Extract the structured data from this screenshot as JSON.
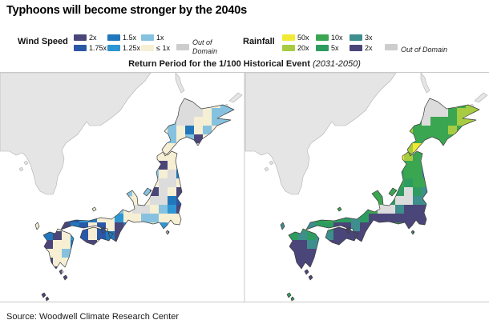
{
  "title": "Typhoons will become stronger by the 2040s",
  "subtitle": {
    "bold": "Return Period for the 1/100 Historical Event",
    "italic": "(2031-2050)"
  },
  "source": "Source: Woodwell Climate Research Center",
  "legend": {
    "wind": {
      "title": "Wind Speed",
      "items": [
        {
          "key": "2x",
          "label": "2x"
        },
        {
          "key": "1.75x",
          "label": "1.75x"
        },
        {
          "key": "1.5x",
          "label": "1.5x"
        },
        {
          "key": "1.25x",
          "label": "1.25x"
        },
        {
          "key": "1x",
          "label": "1x"
        },
        {
          "key": "le1x",
          "label": "≤ 1x"
        }
      ],
      "out_of_domain": "Out of Domain"
    },
    "rain": {
      "title": "Rainfall",
      "items": [
        {
          "key": "50x",
          "label": "50x"
        },
        {
          "key": "20x",
          "label": "20x"
        },
        {
          "key": "10x",
          "label": "10x"
        },
        {
          "key": "5x",
          "label": "5x"
        },
        {
          "key": "3x",
          "label": "3x"
        },
        {
          "key": "2x",
          "label": "2x"
        }
      ],
      "out_of_domain": "Out of Domain"
    }
  },
  "palette": {
    "wind": {
      "2x": "#4a4679",
      "1.75x": "#2b57a7",
      "1.5x": "#2277bb",
      "1.25x": "#2e96d3",
      "1x": "#86c2df",
      "le1x": "#f6efd4",
      "ood": "#dcdcdc"
    },
    "rain": {
      "50x": "#f2e935",
      "20x": "#a7cc42",
      "10x": "#3ba651",
      "5x": "#2e9c60",
      "3x": "#3e8e8e",
      "2x": "#4a4679",
      "ood": "#dcdcdc"
    },
    "legend_ood_swatch": "#cdcdcd",
    "mainland": "#e5e5e5",
    "mainland_stroke": "#b0b0b0",
    "coast": "#3d3d3d",
    "sea": "#ffffff",
    "border": "#c9c9c9",
    "wind_base": "#f6efd4",
    "rain_base": "#3ba651"
  },
  "chart_data": {
    "type": "heatmap",
    "title": "Return Period for the 1/100 Historical Event (2031-2050)",
    "maps": [
      {
        "id": "wind",
        "name": "Wind Speed",
        "categories": [
          "2x",
          "1.75x",
          "1.5x",
          "1.25x",
          "1x",
          "≤ 1x",
          "Out of Domain"
        ]
      },
      {
        "id": "rain",
        "name": "Rainfall",
        "categories": [
          "50x",
          "20x",
          "10x",
          "5x",
          "3x",
          "2x",
          "Out of Domain"
        ]
      }
    ],
    "region": "Japan",
    "cell_size": 11,
    "cells_format": [
      "col",
      "row",
      "wind_value",
      "rain_value"
    ],
    "cells": [
      [
        20,
        3,
        "ood",
        "ood"
      ],
      [
        21,
        3,
        "ood",
        "ood"
      ],
      [
        22,
        3,
        "ood",
        "ood"
      ],
      [
        23,
        3,
        "ood",
        "20x"
      ],
      [
        24,
        3,
        "le1x",
        "10x"
      ],
      [
        25,
        3,
        "1x",
        "20x"
      ],
      [
        26,
        3,
        "le1x",
        "20x"
      ],
      [
        19,
        4,
        "le1x",
        "10x"
      ],
      [
        20,
        4,
        "ood",
        "ood"
      ],
      [
        21,
        4,
        "ood",
        "ood"
      ],
      [
        22,
        4,
        "ood",
        "ood"
      ],
      [
        23,
        4,
        "le1x",
        "10x"
      ],
      [
        24,
        4,
        "1x",
        "20x"
      ],
      [
        25,
        4,
        "1x",
        "20x"
      ],
      [
        26,
        4,
        "1x",
        "20x"
      ],
      [
        18,
        5,
        "le1x",
        "10x"
      ],
      [
        19,
        5,
        "1x",
        "10x"
      ],
      [
        20,
        5,
        "ood",
        "ood"
      ],
      [
        21,
        5,
        "ood",
        "10x"
      ],
      [
        22,
        5,
        "le1x",
        "10x"
      ],
      [
        23,
        5,
        "le1x",
        "10x"
      ],
      [
        24,
        5,
        "1x",
        "20x"
      ],
      [
        25,
        5,
        "1x",
        "20x"
      ],
      [
        26,
        5,
        "le1x",
        "20x"
      ],
      [
        18,
        6,
        "le1x",
        "20x"
      ],
      [
        19,
        6,
        "1x",
        "10x"
      ],
      [
        20,
        6,
        "le1x",
        "10x"
      ],
      [
        21,
        6,
        "1.5x",
        "10x"
      ],
      [
        22,
        6,
        "le1x",
        "10x"
      ],
      [
        23,
        6,
        "1x",
        "20x"
      ],
      [
        24,
        6,
        "le1x",
        "10x"
      ],
      [
        25,
        6,
        "le1x",
        "20x"
      ],
      [
        18,
        7,
        "le1x",
        "50x"
      ],
      [
        19,
        7,
        "1x",
        "10x"
      ],
      [
        20,
        7,
        "le1x",
        "10x"
      ],
      [
        21,
        7,
        "1x",
        "10x"
      ],
      [
        22,
        7,
        "2x",
        "10x"
      ],
      [
        23,
        7,
        "le1x",
        "10x"
      ],
      [
        18,
        8,
        "le1x",
        "20x"
      ],
      [
        19,
        8,
        "le1x",
        "50x"
      ],
      [
        17,
        9,
        "le1x",
        "50x"
      ],
      [
        18,
        9,
        "le1x",
        "20x"
      ],
      [
        19,
        9,
        "le1x",
        "10x"
      ],
      [
        20,
        9,
        "le1x",
        "10x"
      ],
      [
        17,
        10,
        "le1x",
        "10x"
      ],
      [
        18,
        10,
        "2x",
        "10x"
      ],
      [
        19,
        10,
        "le1x",
        "10x"
      ],
      [
        20,
        10,
        "1x",
        "5x"
      ],
      [
        17,
        11,
        "1x",
        "5x"
      ],
      [
        18,
        11,
        "le1x",
        "10x"
      ],
      [
        19,
        11,
        "ood",
        "10x"
      ],
      [
        20,
        11,
        "1.5x",
        "3x"
      ],
      [
        17,
        12,
        "le1x",
        "10x"
      ],
      [
        18,
        12,
        "ood",
        "5x"
      ],
      [
        19,
        12,
        "ood",
        "10x"
      ],
      [
        20,
        12,
        "le1x",
        "10x"
      ],
      [
        14,
        13,
        "1x",
        "10x"
      ],
      [
        15,
        13,
        "le1x",
        "10x"
      ],
      [
        16,
        13,
        "1x",
        "10x"
      ],
      [
        17,
        13,
        "2x",
        "5x"
      ],
      [
        18,
        13,
        "ood",
        "ood"
      ],
      [
        19,
        13,
        "le1x",
        "5x"
      ],
      [
        20,
        13,
        "2x",
        "3x"
      ],
      [
        15,
        14,
        "le1x",
        "10x"
      ],
      [
        16,
        14,
        "le1x",
        "5x"
      ],
      [
        17,
        14,
        "ood",
        "ood"
      ],
      [
        18,
        14,
        "ood",
        "ood"
      ],
      [
        19,
        14,
        "1.5x",
        "3x"
      ],
      [
        20,
        14,
        "1.75x",
        "3x"
      ],
      [
        10,
        15,
        "le1x",
        "10x"
      ],
      [
        13,
        15,
        "1x",
        "5x"
      ],
      [
        14,
        15,
        "le1x",
        "10x"
      ],
      [
        15,
        15,
        "ood",
        "ood"
      ],
      [
        16,
        15,
        "ood",
        "ood"
      ],
      [
        17,
        15,
        "le1x",
        "3x"
      ],
      [
        18,
        15,
        "1x",
        "2x"
      ],
      [
        19,
        15,
        "1.25x",
        "2x"
      ],
      [
        20,
        15,
        "2x",
        "2x"
      ],
      [
        7,
        16,
        "1.5x",
        "10x"
      ],
      [
        8,
        16,
        "1.75x",
        "5x"
      ],
      [
        9,
        16,
        "1.25x",
        "10x"
      ],
      [
        10,
        16,
        "1.5x",
        "5x"
      ],
      [
        11,
        16,
        "le1x",
        "5x"
      ],
      [
        12,
        16,
        "le1x",
        "3x"
      ],
      [
        13,
        16,
        "1.25x",
        "5x"
      ],
      [
        14,
        16,
        "le1x",
        "2x"
      ],
      [
        15,
        16,
        "le1x",
        "2x"
      ],
      [
        16,
        16,
        "1x",
        "2x"
      ],
      [
        17,
        16,
        "1x",
        "2x"
      ],
      [
        18,
        16,
        "le1x",
        "2x"
      ],
      [
        19,
        16,
        "le1x",
        "2x"
      ],
      [
        20,
        16,
        "le1x",
        "2x"
      ],
      [
        4,
        17,
        "le1x",
        "3x"
      ],
      [
        7,
        17,
        "2x",
        "3x"
      ],
      [
        8,
        17,
        "1.5x",
        "5x"
      ],
      [
        9,
        17,
        "1.75x",
        "5x"
      ],
      [
        10,
        17,
        "le1x",
        "2x"
      ],
      [
        11,
        17,
        "1.75x",
        "2x"
      ],
      [
        12,
        17,
        "le1x",
        "3x"
      ],
      [
        13,
        17,
        "2x",
        "2x"
      ],
      [
        14,
        17,
        "1.5x",
        "2x"
      ],
      [
        15,
        17,
        "le1x",
        "2x"
      ],
      [
        18,
        17,
        "1.25x",
        "2x"
      ],
      [
        19,
        17,
        "le1x",
        "2x"
      ],
      [
        20,
        17,
        "le1x",
        "2x"
      ],
      [
        9,
        18,
        "1.75x",
        "3x"
      ],
      [
        10,
        18,
        "le1x",
        "2x"
      ],
      [
        11,
        18,
        "1.75x",
        "2x"
      ],
      [
        12,
        18,
        "1.5x",
        "2x"
      ],
      [
        13,
        18,
        "2x",
        "2x"
      ],
      [
        19,
        18,
        "2x",
        "2x"
      ],
      [
        9,
        19,
        "2x",
        "2x"
      ],
      [
        10,
        19,
        "2x",
        "2x"
      ],
      [
        11,
        19,
        "le1x",
        "2x"
      ],
      [
        12,
        19,
        "1.5x",
        "2x"
      ],
      [
        13,
        19,
        "2x",
        "2x"
      ],
      [
        5,
        18,
        "1.5x",
        "5x"
      ],
      [
        6,
        18,
        "2x",
        "3x"
      ],
      [
        7,
        18,
        "le1x",
        "5x"
      ],
      [
        8,
        18,
        "1.25x",
        "3x"
      ],
      [
        5,
        19,
        "2x",
        "2x"
      ],
      [
        6,
        19,
        "le1x",
        "2x"
      ],
      [
        7,
        19,
        "le1x",
        "3x"
      ],
      [
        8,
        19,
        "1.5x",
        "3x"
      ],
      [
        5,
        20,
        "le1x",
        "2x"
      ],
      [
        6,
        20,
        "le1x",
        "2x"
      ],
      [
        7,
        20,
        "1x",
        "2x"
      ],
      [
        5,
        21,
        "2x",
        "2x"
      ],
      [
        6,
        21,
        "le1x",
        "2x"
      ],
      [
        7,
        21,
        "le1x",
        "2x"
      ],
      [
        6,
        22,
        "2x",
        "2x"
      ],
      [
        7,
        22,
        "le1x",
        "2x"
      ],
      [
        7,
        23,
        "2x",
        "2x"
      ],
      [
        4,
        25,
        "2x",
        "5x"
      ],
      [
        5,
        25,
        "2x",
        "5x"
      ]
    ]
  }
}
